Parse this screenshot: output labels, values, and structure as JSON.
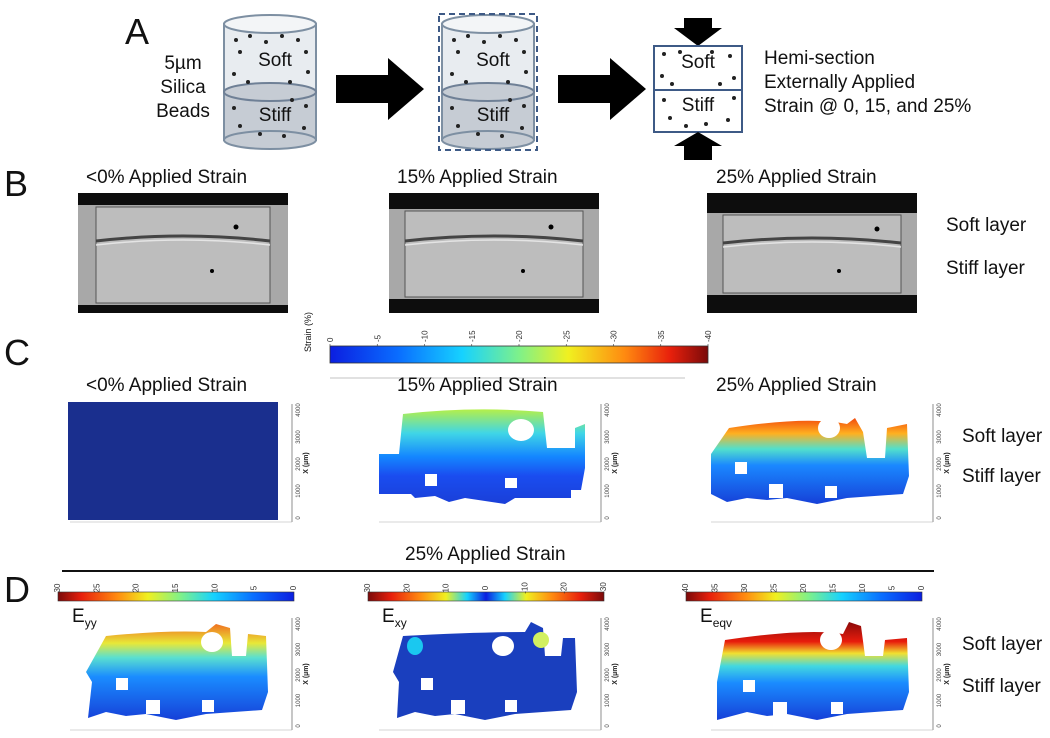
{
  "panels": {
    "a": "A",
    "b": "B",
    "c": "C",
    "d": "D"
  },
  "schematic": {
    "beads_line1": "5µm",
    "beads_line2": "Silica",
    "beads_line3": "Beads",
    "soft": "Soft",
    "stiff": "Stiff",
    "desc_line1": "Hemi-section",
    "desc_line2": "Externally Applied",
    "desc_line3": "Strain @ 0, 15, and 25%"
  },
  "conditions": [
    "<0% Applied Strain",
    "15% Applied Strain",
    "25% Applied Strain"
  ],
  "layers": {
    "soft": "Soft layer",
    "stiff": "Stiff layer"
  },
  "colorbar_c": {
    "title": "Strain (%)",
    "ticks": [
      "0",
      "-5",
      "-10",
      "-15",
      "-20",
      "-25",
      "-30",
      "-35",
      "-40"
    ]
  },
  "section_d_title": "25% Applied Strain",
  "colorbars_d": [
    {
      "ticks": [
        "30",
        "25",
        "20",
        "15",
        "10",
        "5",
        "0"
      ],
      "symbol": "E",
      "sub": "yy"
    },
    {
      "ticks": [
        "30",
        "20",
        "10",
        "0",
        "-10",
        "-20",
        "-30"
      ],
      "symbol": "E",
      "sub": "xy"
    },
    {
      "ticks": [
        "40",
        "35",
        "30",
        "25",
        "20",
        "15",
        "10",
        "5",
        "0"
      ],
      "symbol": "E",
      "sub": "eqv"
    }
  ],
  "map_axis": {
    "label": "X (µm)",
    "ticks": [
      "0",
      "1000",
      "2000",
      "3000",
      "4000"
    ]
  },
  "colors": {
    "map_blue": "#1a2f8e",
    "cb_dark_red": "#7a0a0a",
    "arrow": "#000000",
    "container_edge": "#4a6c9b"
  }
}
